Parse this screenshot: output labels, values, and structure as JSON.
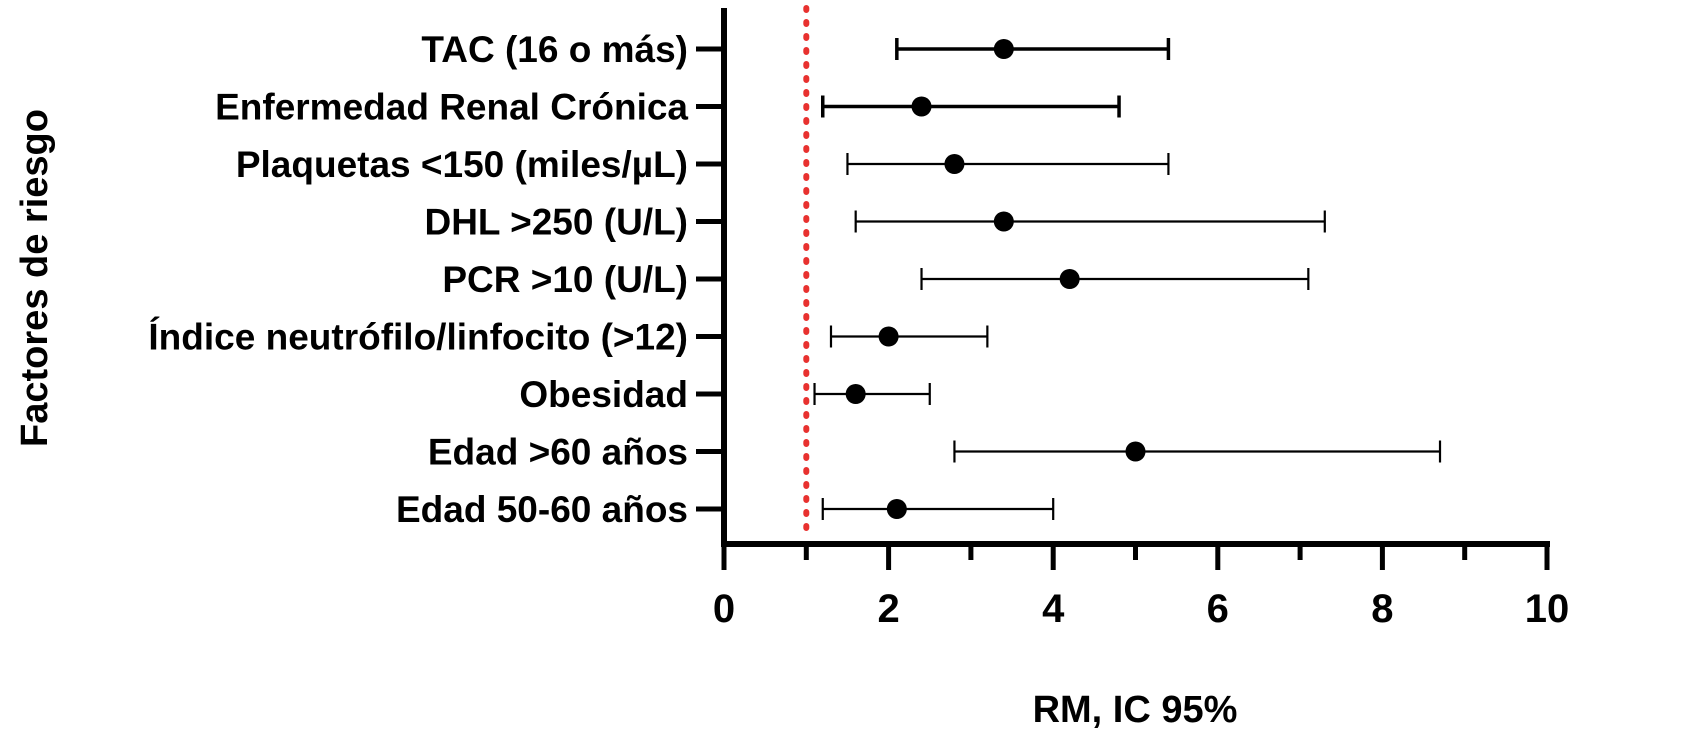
{
  "chart_data": {
    "type": "forest",
    "xlabel": "RM, IC 95%",
    "ylabel": "Factores de riesgo",
    "xlim": [
      0,
      10
    ],
    "xticks": [
      0,
      2,
      4,
      6,
      8,
      10
    ],
    "reference_line": 1,
    "colors": {
      "axis_label": "#9b1b1b",
      "reference_line": "#e8312f",
      "marks": "#000000"
    },
    "rows": [
      {
        "label": "TAC (16 o más)",
        "or": 3.4,
        "lo": 2.1,
        "hi": 5.4
      },
      {
        "label": "Enfermedad Renal Crónica",
        "or": 2.4,
        "lo": 1.2,
        "hi": 4.8
      },
      {
        "label": "Plaquetas <150 (miles/µL)",
        "or": 2.8,
        "lo": 1.5,
        "hi": 5.4
      },
      {
        "label": "DHL >250 (U/L)",
        "or": 3.4,
        "lo": 1.6,
        "hi": 7.3
      },
      {
        "label": "PCR >10 (U/L)",
        "or": 4.2,
        "lo": 2.4,
        "hi": 7.1
      },
      {
        "label": "Índice neutrófilo/linfocito (>12)",
        "or": 2.0,
        "lo": 1.3,
        "hi": 3.2
      },
      {
        "label": "Obesidad",
        "or": 1.6,
        "lo": 1.1,
        "hi": 2.5
      },
      {
        "label": "Edad >60 años",
        "or": 5.0,
        "lo": 2.8,
        "hi": 8.7
      },
      {
        "label": "Edad 50-60 años",
        "or": 2.1,
        "lo": 1.2,
        "hi": 4.0
      }
    ]
  }
}
